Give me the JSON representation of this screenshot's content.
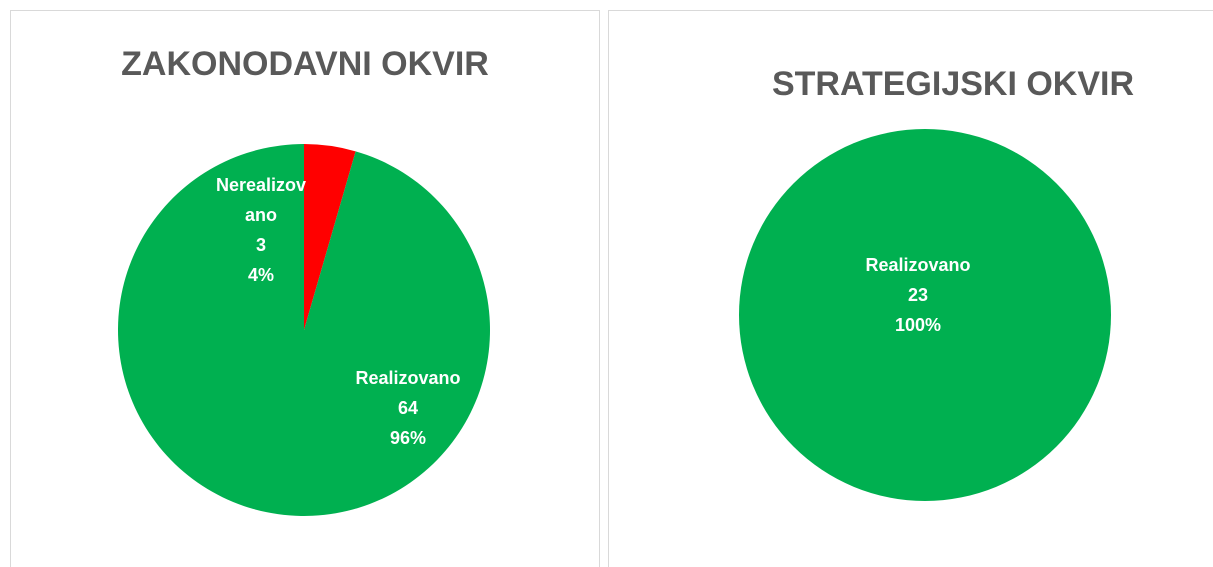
{
  "chart_data": [
    {
      "type": "pie",
      "title": "ZAKONODAVNI OKVIR",
      "categories": [
        "Nerealizovano",
        "Realizovano"
      ],
      "values": [
        3,
        64
      ],
      "percent_labels": [
        "4%",
        "96%"
      ],
      "colors": [
        "#ff0000",
        "#00b050"
      ]
    },
    {
      "type": "pie",
      "title": "STRATEGIJSKI OKVIR",
      "categories": [
        "Realizovano"
      ],
      "values": [
        23
      ],
      "percent_labels": [
        "100%"
      ],
      "colors": [
        "#00b050"
      ]
    }
  ]
}
